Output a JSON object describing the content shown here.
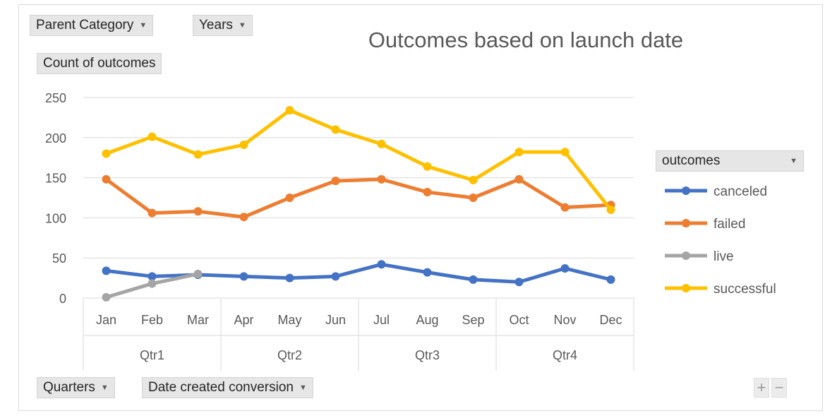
{
  "pivot_filters": {
    "parent_category": "Parent Category",
    "years": "Years",
    "value_field": "Count of outcomes",
    "quarters": "Quarters",
    "date_created": "Date created conversion"
  },
  "legend": {
    "header": "outcomes",
    "placement": "right"
  },
  "zoom": {
    "plus": "+",
    "minus": "−"
  },
  "chart_data": {
    "type": "line",
    "title": "Outcomes based on launch date",
    "xlabel": "",
    "ylabel": "",
    "categories": [
      "Jan",
      "Feb",
      "Mar",
      "Apr",
      "May",
      "Jun",
      "Jul",
      "Aug",
      "Sep",
      "Oct",
      "Nov",
      "Dec"
    ],
    "groups": [
      {
        "label": "Qtr1",
        "categories": [
          "Jan",
          "Feb",
          "Mar"
        ]
      },
      {
        "label": "Qtr2",
        "categories": [
          "Apr",
          "May",
          "Jun"
        ]
      },
      {
        "label": "Qtr3",
        "categories": [
          "Jul",
          "Aug",
          "Sep"
        ]
      },
      {
        "label": "Qtr4",
        "categories": [
          "Oct",
          "Nov",
          "Dec"
        ]
      }
    ],
    "ylim": [
      0,
      250
    ],
    "yticks": [
      0,
      50,
      100,
      150,
      200,
      250
    ],
    "grid": true,
    "series": [
      {
        "name": "canceled",
        "color": "#4472c4",
        "values": [
          34,
          27,
          29,
          27,
          25,
          27,
          42,
          32,
          23,
          20,
          37,
          23
        ]
      },
      {
        "name": "failed",
        "color": "#ed7d31",
        "values": [
          148,
          106,
          108,
          101,
          125,
          146,
          148,
          132,
          125,
          148,
          113,
          116
        ]
      },
      {
        "name": "live",
        "color": "#a5a5a5",
        "values": [
          1,
          18,
          30,
          null,
          null,
          null,
          null,
          null,
          null,
          null,
          null,
          null
        ]
      },
      {
        "name": "successful",
        "color": "#ffc000",
        "values": [
          180,
          201,
          179,
          191,
          234,
          210,
          192,
          164,
          147,
          182,
          182,
          110
        ]
      }
    ]
  }
}
